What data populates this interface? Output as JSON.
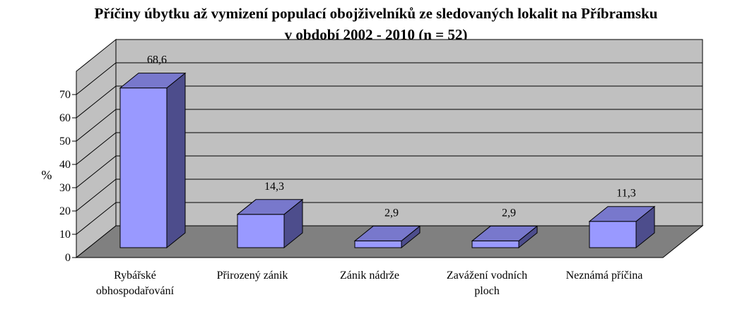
{
  "chart_data": {
    "type": "bar",
    "title_line1": "Příčiny úbytku až vymizení populací obojživelníků ze sledovaných lokalit na Příbramsku",
    "title_line2": "v období 2002 - 2010 (n = 52)",
    "ylabel": "%",
    "xlabel": "",
    "categories": [
      [
        "Rybářské",
        "obhospodařování"
      ],
      [
        "Přirozený zánik"
      ],
      [
        "Zánik nádrže"
      ],
      [
        "Zavážení vodních",
        "ploch"
      ],
      [
        "Neznámá příčina"
      ]
    ],
    "values": [
      68.6,
      14.3,
      2.9,
      2.9,
      11.3
    ],
    "value_labels": [
      "68,6",
      "14,3",
      "2,9",
      "2,9",
      "11,3"
    ],
    "ylim": [
      0,
      70
    ],
    "yticks": [
      "0",
      "10",
      "20",
      "30",
      "40",
      "50",
      "60",
      "70"
    ],
    "grid": true,
    "legend": "none",
    "colors": {
      "bar_front": "#9999ff",
      "bar_side": "#4d4d8c",
      "bar_top": "#7878cc",
      "wall": "#c0c0c0",
      "floor": "#808080"
    }
  }
}
